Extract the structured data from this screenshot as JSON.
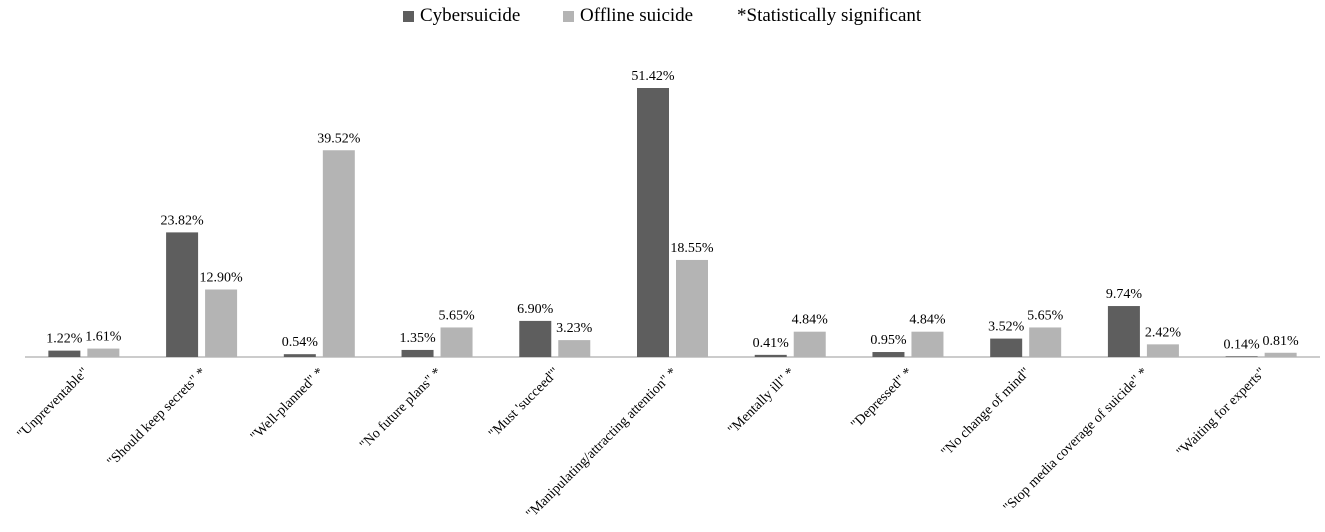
{
  "chart_data": {
    "type": "bar",
    "legend": {
      "placement": "top-center",
      "note": "*Statistically significant"
    },
    "categories": [
      "\"Unpreventable\"",
      "\"Should keep secrets\" *",
      "\"Well-planned\" *",
      "\"No future plans\" *",
      "\"Must 'succeed'\"",
      "\"Manipulating/attracting attention\" *",
      "\"Mentally ill\" *",
      "\"Depressed\" *",
      "\"No change of mind\"",
      "\"Stop media coverage of suicide\" *",
      "\"Waiting for experts\""
    ],
    "series": [
      {
        "name": "Cybersuicide",
        "color": "#5e5e5e",
        "values": [
          1.22,
          23.82,
          0.54,
          1.35,
          6.9,
          51.42,
          0.41,
          0.95,
          3.52,
          9.74,
          0.14
        ],
        "labels": [
          "1.22%",
          "23.82%",
          "0.54%",
          "1.35%",
          "6.90%",
          "51.42%",
          "0.41%",
          "0.95%",
          "3.52%",
          "9.74%",
          "0.14%"
        ]
      },
      {
        "name": "Offline suicide",
        "color": "#b4b4b4",
        "values": [
          1.61,
          12.9,
          39.52,
          5.65,
          3.23,
          18.55,
          4.84,
          4.84,
          5.65,
          2.42,
          0.81
        ],
        "labels": [
          "1.61%",
          "12.90%",
          "39.52%",
          "5.65%",
          "3.23%",
          "18.55%",
          "4.84%",
          "4.84%",
          "5.65%",
          "2.42%",
          "0.81%"
        ]
      }
    ],
    "ylim": [
      0,
      55
    ],
    "grid": false,
    "y_axis_visible": false
  }
}
